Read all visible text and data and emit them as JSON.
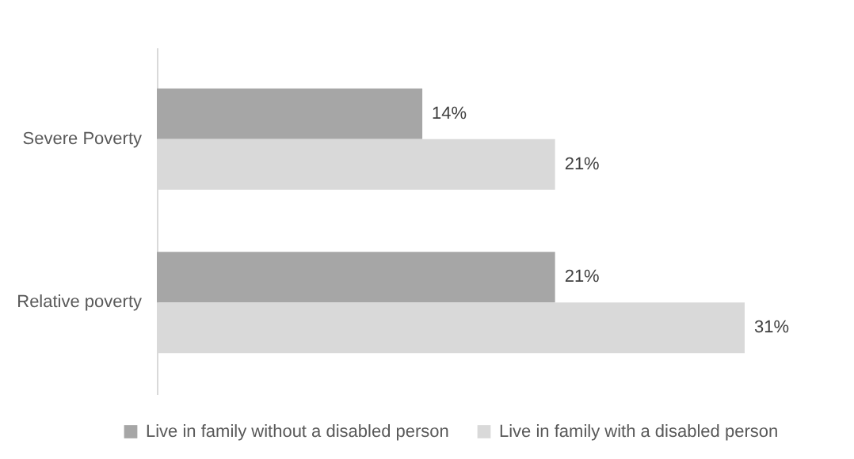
{
  "chart_data": {
    "type": "bar",
    "orientation": "horizontal",
    "categories": [
      "Severe Poverty",
      "Relative poverty"
    ],
    "series": [
      {
        "name": "Live in family without a disabled person",
        "color": "#a6a6a6",
        "values": [
          14,
          21
        ],
        "value_labels": [
          "14%",
          "21%"
        ]
      },
      {
        "name": "Live in family with a disabled person",
        "color": "#d9d9d9",
        "values": [
          21,
          31
        ],
        "value_labels": [
          "21%",
          "31%"
        ]
      }
    ],
    "legend": "bottom"
  }
}
